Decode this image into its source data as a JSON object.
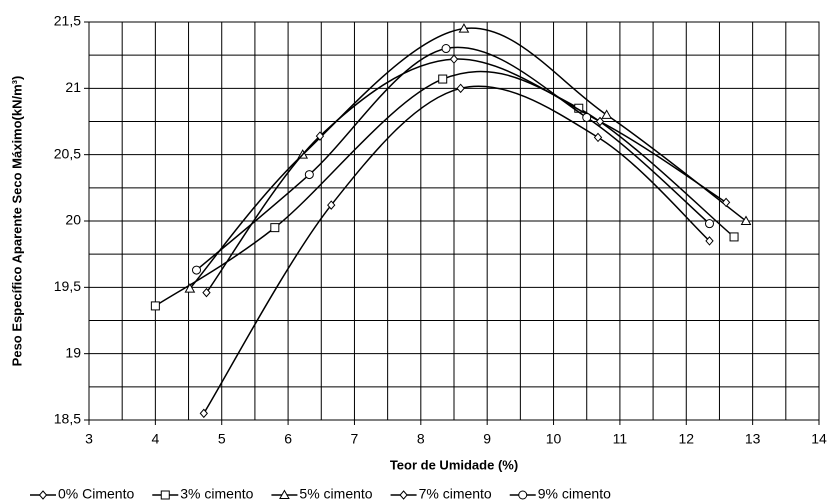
{
  "chart_data": {
    "type": "line",
    "x_label": "Teor de Umidade (%)",
    "y_label": "Peso Específico Aparente Seco Máximo(kN/m³)",
    "xlim": [
      3,
      14
    ],
    "xticks": [
      3,
      4,
      5,
      6,
      7,
      8,
      9,
      10,
      11,
      12,
      13,
      14
    ],
    "ylim": [
      18.5,
      21.5
    ],
    "yticks": [
      {
        "value": 18.5,
        "label": "18,5"
      },
      19,
      {
        "value": 19.5,
        "label": "19,5"
      },
      20,
      {
        "value": 20.5,
        "label": "20,5"
      },
      21,
      {
        "value": 21.5,
        "label": "21,5"
      }
    ],
    "xgrid": [
      3,
      3.5,
      4,
      4.5,
      5,
      5.5,
      6,
      6.5,
      7,
      7.5,
      8,
      8.5,
      9,
      9.5,
      10,
      10.5,
      11,
      11.5,
      12,
      12.5,
      13,
      13.5,
      14
    ],
    "ygrid": [
      18.5,
      18.75,
      19,
      19.25,
      19.5,
      19.75,
      20,
      20.25,
      20.5,
      20.75,
      21,
      21.25,
      21.5
    ],
    "grid": true,
    "legend": "bottom",
    "series": [
      {
        "name": "0% Cimento",
        "color": "#000000",
        "marker": "diamond",
        "x": [
          4.73,
          6.65,
          8.6,
          10.67,
          12.35
        ],
        "values": [
          18.55,
          20.12,
          21.0,
          20.63,
          19.85
        ]
      },
      {
        "name": "3% cimento",
        "color": "#000000",
        "marker": "square",
        "x": [
          4.0,
          5.8,
          8.33,
          10.38,
          12.72
        ],
        "values": [
          19.36,
          19.95,
          21.07,
          20.85,
          19.88
        ]
      },
      {
        "name": "5% cimento",
        "color": "#000000",
        "marker": "triangle",
        "x": [
          4.52,
          6.22,
          8.65,
          10.8,
          12.9
        ],
        "values": [
          19.49,
          20.5,
          21.45,
          20.8,
          20.0
        ]
      },
      {
        "name": "7% cimento",
        "color": "#000000",
        "marker": "diamond",
        "x": [
          4.77,
          6.48,
          8.5,
          10.7,
          12.6
        ],
        "values": [
          19.46,
          20.64,
          21.22,
          20.75,
          20.14
        ]
      },
      {
        "name": "9% cimento",
        "color": "#000000",
        "marker": "circle",
        "x": [
          4.62,
          6.32,
          8.38,
          10.5,
          12.35
        ],
        "values": [
          19.63,
          20.35,
          21.3,
          20.78,
          19.98
        ]
      }
    ]
  }
}
